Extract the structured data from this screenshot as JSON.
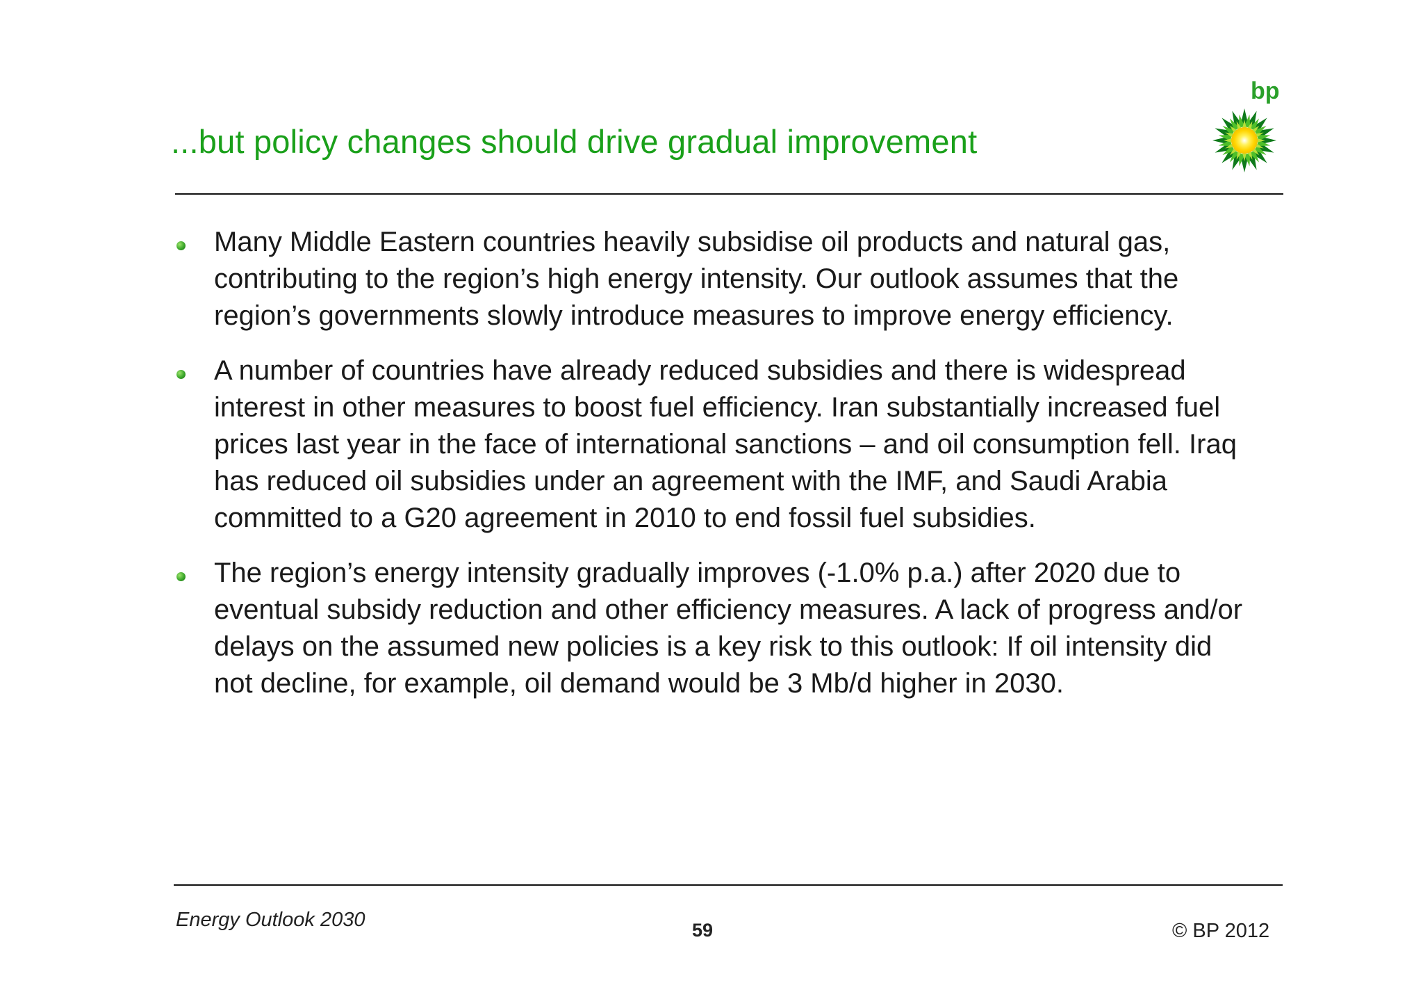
{
  "slide": {
    "title": "...but policy changes should drive gradual improvement",
    "logo_text": "bp",
    "bullets": [
      "Many Middle Eastern countries heavily subsidise oil products and natural gas, contributing to the region’s high energy intensity.  Our outlook assumes that the region’s governments slowly introduce measures to improve energy efficiency.",
      "A number of countries have already reduced subsidies and there is widespread interest in other measures to boost fuel efficiency. Iran substantially increased fuel prices last year in the face of international sanctions – and oil consumption fell. Iraq has reduced oil subsidies under an agreement with the IMF, and Saudi Arabia committed to a G20 agreement in 2010 to end fossil fuel subsidies.",
      "The region’s energy intensity gradually improves (-1.0% p.a.) after 2020 due to eventual subsidy reduction and other efficiency measures. A lack of progress and/or delays on the assumed new policies is a key risk to this outlook: If oil intensity did not decline, for example, oil demand would be 3 Mb/d higher in 2030."
    ]
  },
  "footer": {
    "left": "Energy Outlook 2030",
    "page_number": "59",
    "copyright": "© BP 2012"
  },
  "colors": {
    "title": "#1aa01a",
    "brand_green": "#2aa02a",
    "brand_yellow": "#ffe600"
  },
  "icons": {
    "logo": "bp-helios-logo-icon",
    "bullet": "green-dot-bullet-icon"
  }
}
